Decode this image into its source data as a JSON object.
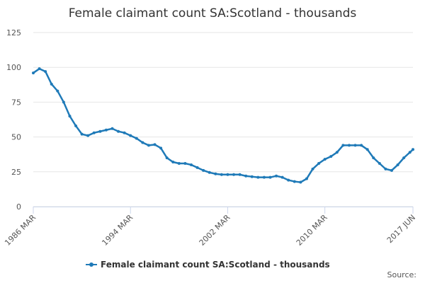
{
  "chart_data": {
    "type": "line",
    "title": "Female claimant count SA:Scotland - thousands",
    "source": "Source:",
    "x": [
      "1986-03",
      "1986-09",
      "1987-03",
      "1987-09",
      "1988-03",
      "1988-09",
      "1989-03",
      "1989-09",
      "1990-03",
      "1990-09",
      "1991-03",
      "1991-09",
      "1992-03",
      "1992-09",
      "1993-03",
      "1993-09",
      "1994-03",
      "1994-09",
      "1995-03",
      "1995-09",
      "1996-03",
      "1996-09",
      "1997-03",
      "1997-09",
      "1998-03",
      "1998-09",
      "1999-03",
      "1999-09",
      "2000-03",
      "2000-09",
      "2001-03",
      "2001-09",
      "2002-03",
      "2002-09",
      "2003-03",
      "2003-09",
      "2004-03",
      "2004-09",
      "2005-03",
      "2005-09",
      "2006-03",
      "2006-09",
      "2007-03",
      "2007-09",
      "2008-03",
      "2008-09",
      "2009-03",
      "2009-09",
      "2010-03",
      "2010-09",
      "2011-03",
      "2011-09",
      "2012-03",
      "2012-09",
      "2013-03",
      "2013-09",
      "2014-03",
      "2014-09",
      "2015-03",
      "2015-09",
      "2016-03",
      "2016-09",
      "2017-03",
      "2017-06"
    ],
    "series": [
      {
        "name": "Female claimant count SA:Scotland - thousands",
        "color": "#1f7ab8",
        "values": [
          96,
          99,
          97,
          88,
          83,
          75,
          65,
          58,
          52,
          51,
          53,
          54,
          55,
          56,
          54,
          53,
          51,
          49,
          46,
          44,
          44.5,
          42,
          35,
          32,
          31,
          31,
          30,
          28,
          26,
          24.5,
          23.5,
          23,
          23,
          23,
          23,
          22,
          21.5,
          21,
          21,
          21,
          22,
          21,
          19,
          18,
          17.5,
          20,
          27,
          31,
          34,
          36,
          39,
          44,
          44,
          44,
          44,
          41,
          35,
          31,
          27,
          26,
          30,
          35,
          39,
          41
        ]
      }
    ],
    "xlim": [
      "1986-03",
      "2017-06"
    ],
    "xticks": [
      {
        "value": "1986-03",
        "label": "1986 MAR"
      },
      {
        "value": "1994-03",
        "label": "1994 MAR"
      },
      {
        "value": "2002-03",
        "label": "2002 MAR"
      },
      {
        "value": "2010-03",
        "label": "2010 MAR"
      },
      {
        "value": "2017-06",
        "label": "2017 JUN"
      }
    ],
    "ylim": [
      0,
      125
    ],
    "yticks": [
      0,
      25,
      50,
      75,
      100,
      125
    ],
    "grid": true
  }
}
